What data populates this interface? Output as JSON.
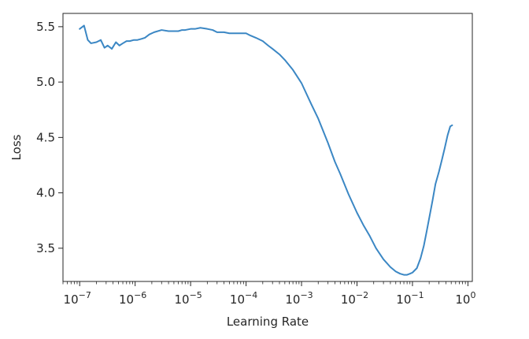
{
  "chart_data": {
    "type": "line",
    "title": "",
    "xlabel": "Learning Rate",
    "ylabel": "Loss",
    "xscale": "log",
    "xlim": [
      5e-08,
      1.2
    ],
    "ylim": [
      3.2,
      5.62
    ],
    "grid": false,
    "line_color": "#3b87c4",
    "x_ticks": [
      {
        "value": 1e-07,
        "base": "10",
        "exp": "−7"
      },
      {
        "value": 1e-06,
        "base": "10",
        "exp": "−6"
      },
      {
        "value": 1e-05,
        "base": "10",
        "exp": "−5"
      },
      {
        "value": 0.0001,
        "base": "10",
        "exp": "−4"
      },
      {
        "value": 0.001,
        "base": "10",
        "exp": "−3"
      },
      {
        "value": 0.01,
        "base": "10",
        "exp": "−2"
      },
      {
        "value": 0.1,
        "base": "10",
        "exp": "−1"
      },
      {
        "value": 1,
        "base": "10",
        "exp": "0"
      }
    ],
    "y_ticks": [
      {
        "value": 3.5,
        "label": "3.5"
      },
      {
        "value": 4.0,
        "label": "4.0"
      },
      {
        "value": 4.5,
        "label": "4.5"
      },
      {
        "value": 5.0,
        "label": "5.0"
      },
      {
        "value": 5.5,
        "label": "5.5"
      }
    ],
    "series": [
      {
        "x": [
          1e-07,
          1.2e-07,
          1.4e-07,
          1.6e-07,
          2e-07,
          2.4e-07,
          2.8e-07,
          3.2e-07,
          3.8e-07,
          4.5e-07,
          5.2e-07,
          6e-07,
          7e-07,
          8e-07,
          9.5e-07,
          1.1e-06,
          1.3e-06,
          1.5e-06,
          1.8e-06,
          2.2e-06,
          3e-06,
          4e-06,
          5e-06,
          6e-06,
          7e-06,
          8e-06,
          1e-05,
          1.2e-05,
          1.5e-05,
          2e-05,
          2.5e-05,
          3e-05,
          4e-05,
          5e-05,
          6e-05,
          8e-05,
          0.0001,
          0.00012,
          0.00015,
          0.0002,
          0.00025,
          0.0003,
          0.0004,
          0.0005,
          0.0007,
          0.001,
          0.0015,
          0.002,
          0.003,
          0.004,
          0.005,
          0.007,
          0.01,
          0.013,
          0.017,
          0.022,
          0.03,
          0.04,
          0.05,
          0.06,
          0.07,
          0.08,
          0.09,
          0.1,
          0.12,
          0.14,
          0.16,
          0.18,
          0.2,
          0.23,
          0.26,
          0.3,
          0.34,
          0.38,
          0.43,
          0.48,
          0.52
        ],
        "y": [
          5.48,
          5.51,
          5.38,
          5.35,
          5.36,
          5.38,
          5.31,
          5.33,
          5.3,
          5.36,
          5.33,
          5.35,
          5.37,
          5.37,
          5.38,
          5.38,
          5.39,
          5.4,
          5.43,
          5.45,
          5.47,
          5.46,
          5.46,
          5.46,
          5.47,
          5.47,
          5.48,
          5.48,
          5.49,
          5.48,
          5.47,
          5.45,
          5.45,
          5.44,
          5.44,
          5.44,
          5.44,
          5.42,
          5.4,
          5.37,
          5.33,
          5.3,
          5.25,
          5.2,
          5.11,
          4.99,
          4.8,
          4.67,
          4.45,
          4.28,
          4.17,
          3.99,
          3.82,
          3.71,
          3.61,
          3.5,
          3.4,
          3.33,
          3.29,
          3.27,
          3.26,
          3.26,
          3.27,
          3.28,
          3.32,
          3.41,
          3.52,
          3.65,
          3.77,
          3.93,
          4.08,
          4.19,
          4.3,
          4.4,
          4.52,
          4.6,
          4.61
        ]
      }
    ]
  }
}
